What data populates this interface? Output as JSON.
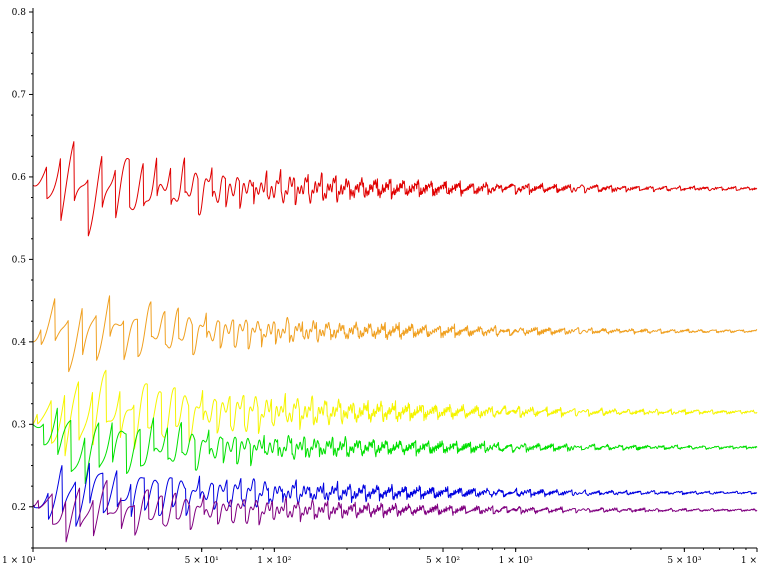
{
  "chart_data": {
    "type": "line",
    "title": "",
    "xlabel": "",
    "ylabel": "",
    "x_scale": "log",
    "xlim": [
      10,
      10000
    ],
    "ylim": [
      0.15,
      0.8
    ],
    "grid": false,
    "legend": "none",
    "y_ticks": [
      {
        "value": 0.2,
        "label": "0.2"
      },
      {
        "value": 0.3,
        "label": "0.3"
      },
      {
        "value": 0.4,
        "label": "0.4"
      },
      {
        "value": 0.5,
        "label": "0.5"
      },
      {
        "value": 0.6,
        "label": "0.6"
      },
      {
        "value": 0.7,
        "label": "0.7"
      },
      {
        "value": 0.8,
        "label": "0.8"
      }
    ],
    "x_ticks": [
      {
        "value": 10,
        "label": "1 × 10¹"
      },
      {
        "value": 50,
        "label": "5 × 10¹"
      },
      {
        "value": 100,
        "label": "1 × 10²"
      },
      {
        "value": 500,
        "label": "5 × 10²"
      },
      {
        "value": 1000,
        "label": "1 × 10³"
      },
      {
        "value": 5000,
        "label": "5 × 10³"
      },
      {
        "value": 10000,
        "label": "1 ×"
      }
    ],
    "series": [
      {
        "color": "#e00000",
        "limit": 0.586,
        "start": 0.59,
        "amplitude": 0.06,
        "phase": 0.0
      },
      {
        "color": "#f0a020",
        "limit": 0.413,
        "start": 0.4,
        "amplitude": 0.05,
        "phase": 1.3
      },
      {
        "color": "#f5f500",
        "limit": 0.315,
        "start": 0.3,
        "amplitude": 0.06,
        "phase": 2.1
      },
      {
        "color": "#00e000",
        "limit": 0.272,
        "start": 0.3,
        "amplitude": 0.05,
        "phase": 0.7
      },
      {
        "color": "#0000e0",
        "limit": 0.217,
        "start": 0.2,
        "amplitude": 0.045,
        "phase": 2.8
      },
      {
        "color": "#800080",
        "limit": 0.196,
        "start": 0.2,
        "amplitude": 0.04,
        "phase": 1.9
      }
    ]
  }
}
